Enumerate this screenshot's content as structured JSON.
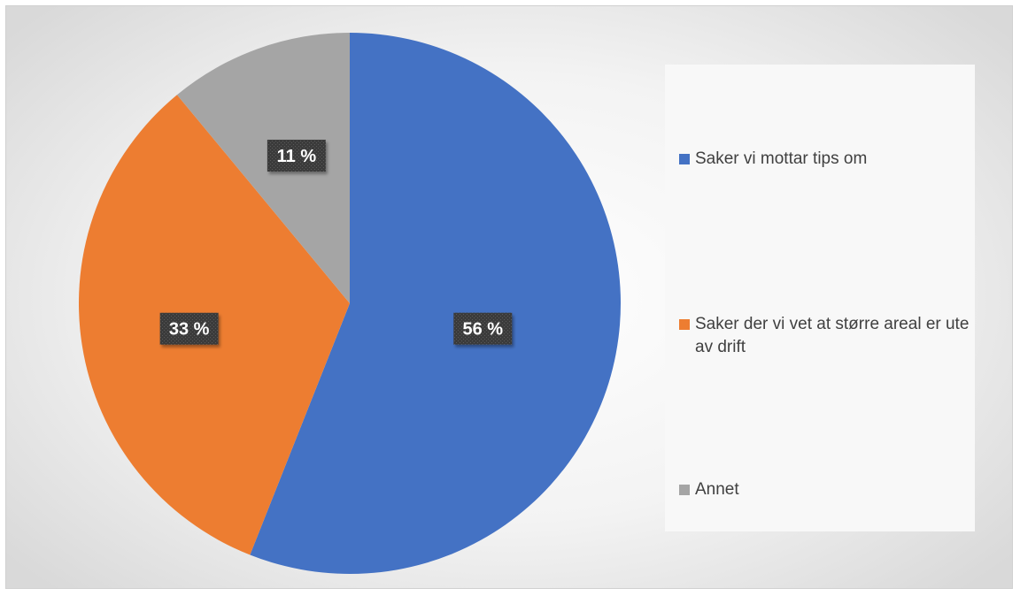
{
  "chart_data": {
    "type": "pie",
    "title": "",
    "slices": [
      {
        "label": "Saker vi mottar tips om",
        "value": 56,
        "data_label": "56 %",
        "color": "#4472C4"
      },
      {
        "label": "Saker der vi vet at større areal er ute av drift",
        "value": 33,
        "data_label": "33 %",
        "color": "#ED7D31"
      },
      {
        "label": "Annet",
        "value": 11,
        "data_label": "11 %",
        "color": "#A5A5A5"
      }
    ],
    "start_angle": "12 o'clock",
    "direction": "clockwise",
    "legend_position": "right",
    "data_label_style": "white bold text on dark patterned box"
  }
}
